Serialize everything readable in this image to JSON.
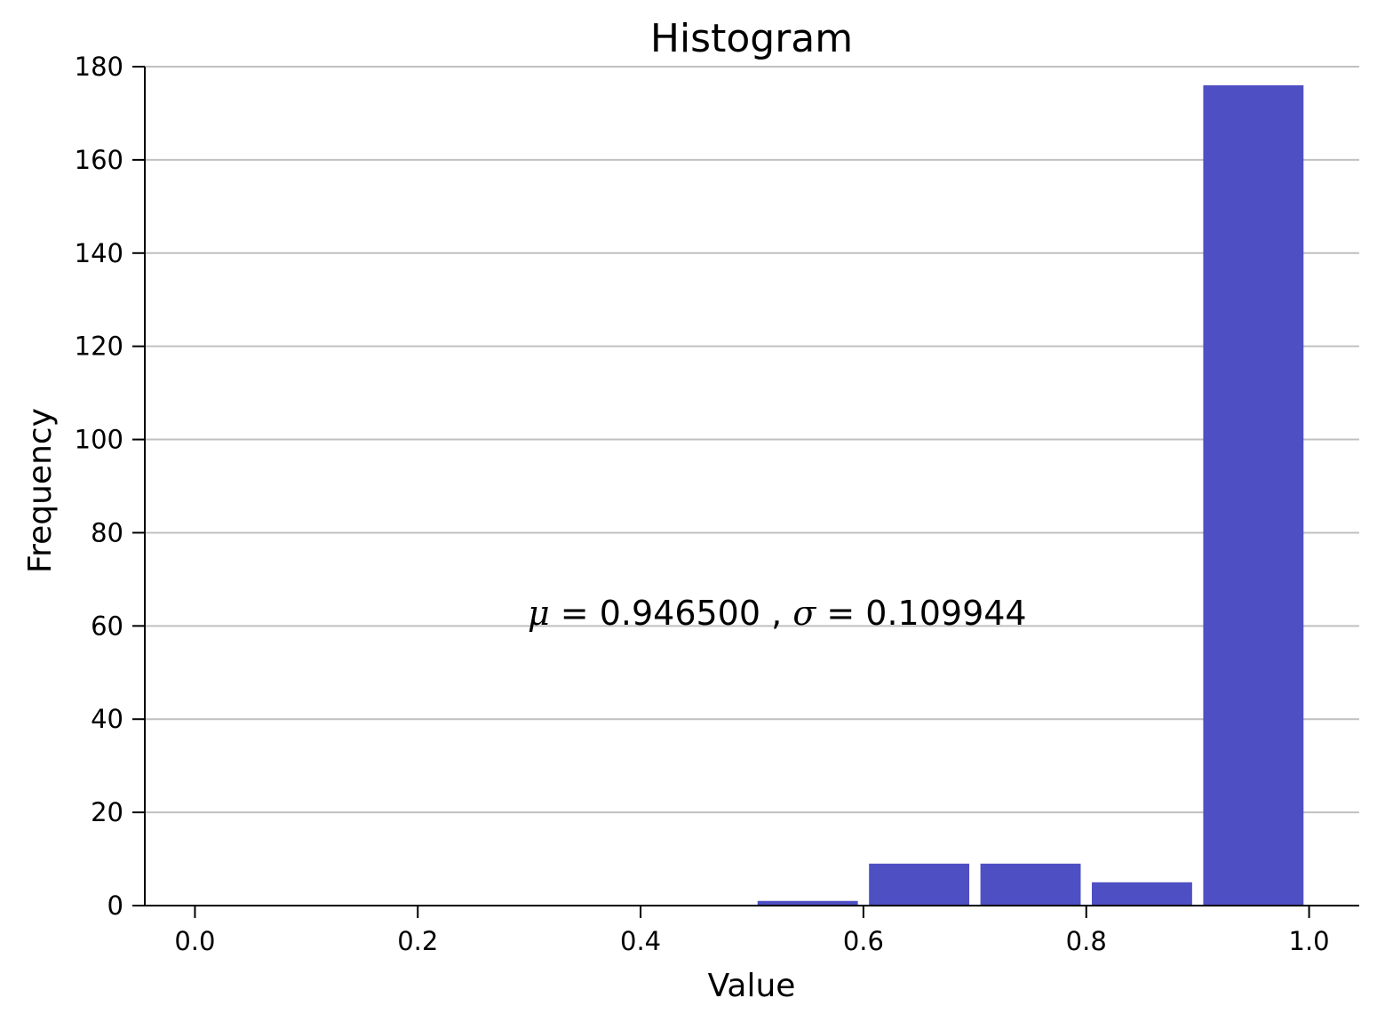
{
  "chart_data": {
    "type": "bar",
    "title": "Histogram",
    "xlabel": "Value",
    "ylabel": "Frequency",
    "annotation": {
      "mu_symbol": "μ",
      "mu_value": "0.946500",
      "sigma_symbol": "σ",
      "sigma_value": "0.109944"
    },
    "xlim": [
      -0.045,
      1.045
    ],
    "ylim": [
      0,
      180
    ],
    "x_ticks": [
      {
        "value": 0.0,
        "label": "0.0"
      },
      {
        "value": 0.2,
        "label": "0.2"
      },
      {
        "value": 0.4,
        "label": "0.4"
      },
      {
        "value": 0.6,
        "label": "0.6"
      },
      {
        "value": 0.8,
        "label": "0.8"
      },
      {
        "value": 1.0,
        "label": "1.0"
      }
    ],
    "y_ticks": [
      {
        "value": 0,
        "label": "0"
      },
      {
        "value": 20,
        "label": "20"
      },
      {
        "value": 40,
        "label": "40"
      },
      {
        "value": 60,
        "label": "60"
      },
      {
        "value": 80,
        "label": "80"
      },
      {
        "value": 100,
        "label": "100"
      },
      {
        "value": 120,
        "label": "120"
      },
      {
        "value": 140,
        "label": "140"
      },
      {
        "value": 160,
        "label": "160"
      },
      {
        "value": 180,
        "label": "180"
      }
    ],
    "bins": [
      {
        "start": 0.0,
        "end": 0.1,
        "count": 0
      },
      {
        "start": 0.1,
        "end": 0.2,
        "count": 0
      },
      {
        "start": 0.2,
        "end": 0.3,
        "count": 0
      },
      {
        "start": 0.3,
        "end": 0.4,
        "count": 0
      },
      {
        "start": 0.4,
        "end": 0.5,
        "count": 0
      },
      {
        "start": 0.5,
        "end": 0.6,
        "count": 1
      },
      {
        "start": 0.6,
        "end": 0.7,
        "count": 9
      },
      {
        "start": 0.7,
        "end": 0.8,
        "count": 9
      },
      {
        "start": 0.8,
        "end": 0.9,
        "count": 5
      },
      {
        "start": 0.9,
        "end": 1.0,
        "count": 176
      }
    ],
    "bar_color": "#4f4fc4",
    "grid": "horizontal",
    "grid_color": "#c0c0c0"
  }
}
